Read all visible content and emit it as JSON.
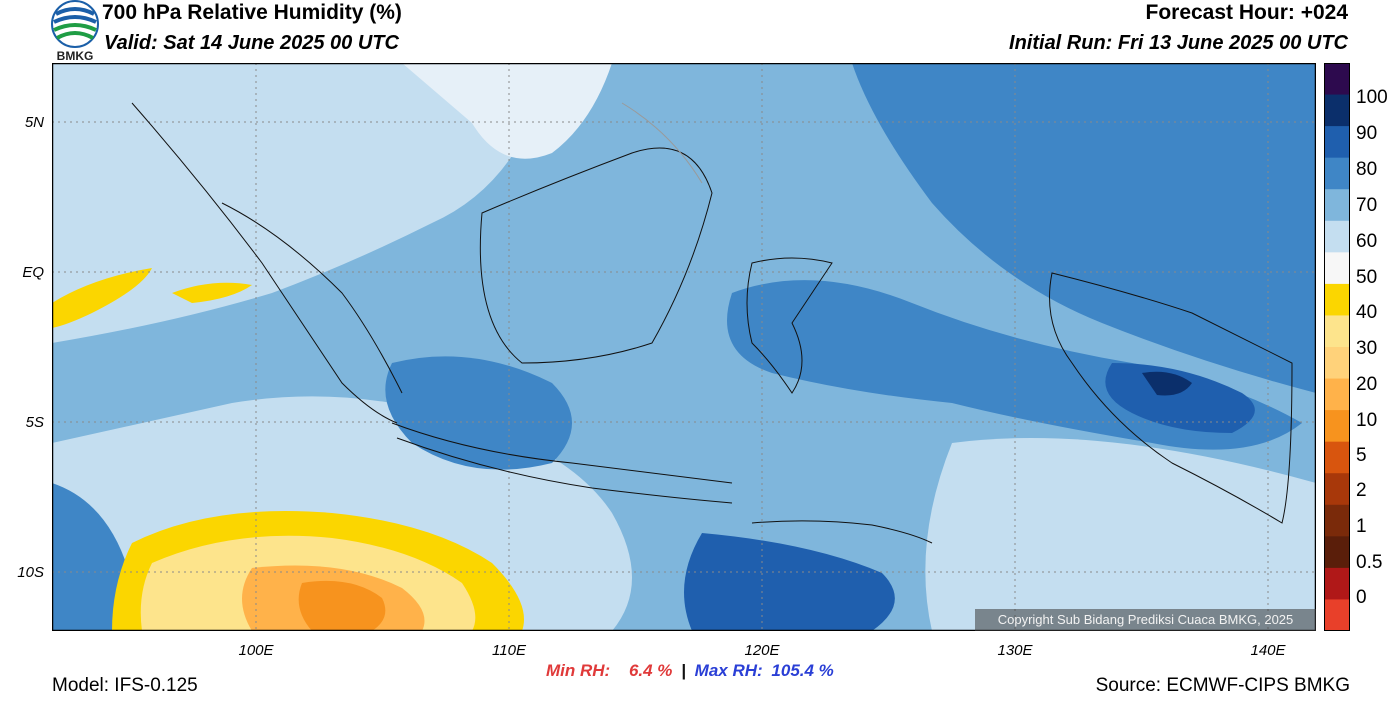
{
  "header": {
    "title": "700 hPa Relative Humidity (%)",
    "valid": "Valid: Sat 14 June 2025 00 UTC",
    "forecast_hour": "Forecast Hour: +024",
    "initial_run": "Initial Run: Fri 13 June 2025 00 UTC"
  },
  "logo": {
    "text": "BMKG",
    "icon": "bmkg-logo-icon"
  },
  "map": {
    "y_ticks": [
      "5N",
      "EQ",
      "5S",
      "10S"
    ],
    "x_ticks": [
      "100E",
      "110E",
      "120E",
      "130E",
      "140E"
    ],
    "copyright": "Copyright Sub Bidang Prediksi Cuaca BMKG, 2025"
  },
  "colorbar": {
    "labels": [
      "100",
      "90",
      "80",
      "70",
      "60",
      "50",
      "40",
      "30",
      "20",
      "10",
      "5",
      "2",
      "1",
      "0.5",
      "0"
    ],
    "colors": [
      "#2d0a4e",
      "#0b2f6b",
      "#1f5fae",
      "#3f86c6",
      "#7fb6dc",
      "#c4def0",
      "#f7f7f7",
      "#fbd600",
      "#fde48c",
      "#ffd27a",
      "#ffb24a",
      "#f7931e",
      "#d8550e",
      "#a8380a",
      "#7a2a0a",
      "#5a1e0a",
      "#b01818",
      "#e8402a"
    ]
  },
  "stats": {
    "min_label": "Min RH:",
    "min_value": "6.4 %",
    "separator": "|",
    "max_label": "Max RH:",
    "max_value": "105.4 %"
  },
  "footer": {
    "model": "Model: IFS-0.125",
    "source": "Source: ECMWF-CIPS BMKG"
  }
}
